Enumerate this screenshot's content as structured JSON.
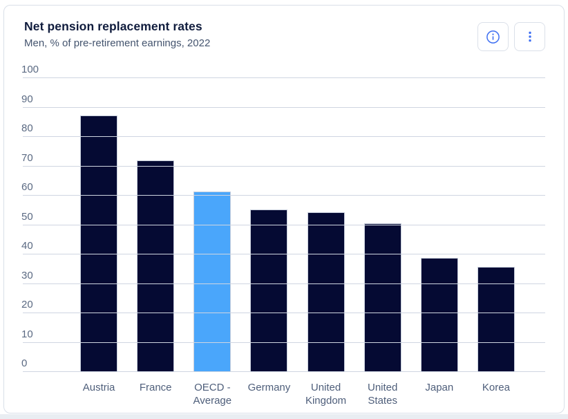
{
  "header": {
    "title": "Net pension replacement rates",
    "subtitle": "Men, % of pre-retirement earnings, 2022",
    "actions": {
      "info_label": "Chart information",
      "more_label": "More options"
    }
  },
  "colors": {
    "bar_default": "#050a33",
    "bar_highlight": "#4aa6fb",
    "icon_accent": "#3e6ff2",
    "gridline": "#cfd5e1",
    "axis_text": "#5a6982",
    "title_text": "#101c3d",
    "subtitle_text": "#44546e",
    "card_border": "#d9dfe8"
  },
  "chart_data": {
    "type": "bar",
    "title": "Net pension replacement rates",
    "subtitle": "Men, % of pre-retirement earnings, 2022",
    "categories": [
      "Austria",
      "France",
      "OECD -\nAverage",
      "Germany",
      "United\nKingdom",
      "United\nStates",
      "Japan",
      "Korea"
    ],
    "values": [
      87.4,
      71.9,
      61.4,
      55.3,
      54.4,
      50.5,
      38.8,
      35.8
    ],
    "highlight_index": 2,
    "highlight_category": "OECD - Average",
    "xlabel": "",
    "ylabel": "",
    "ylim": [
      0,
      100
    ],
    "yticks": [
      0,
      10,
      20,
      30,
      40,
      50,
      60,
      70,
      80,
      90,
      100
    ],
    "grid": true,
    "legend": "none"
  }
}
